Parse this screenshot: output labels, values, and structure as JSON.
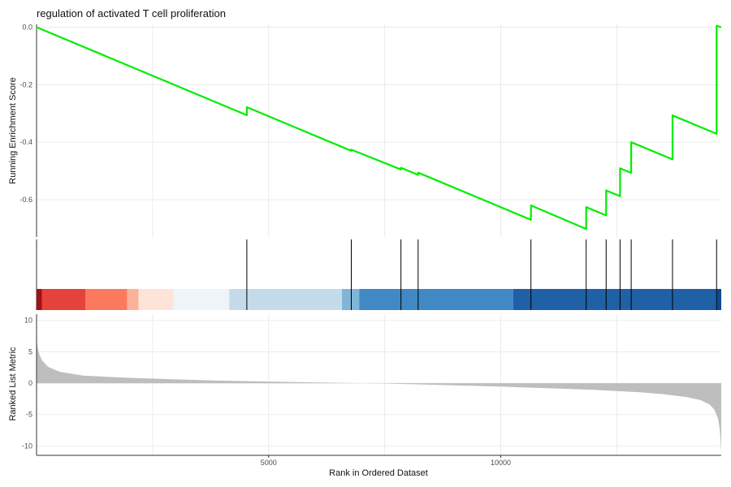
{
  "chart_data": {
    "type": "line",
    "title": "regulation of activated T cell proliferation",
    "xlabel": "Rank in Ordered Dataset",
    "x_ticks": [
      5000,
      10000
    ],
    "x_range": [
      0,
      14750
    ],
    "grid": true,
    "colors": {
      "running_score": "#00ee00",
      "ranked_metric_fill": "#bebebe",
      "gridline": "#ebebeb",
      "hit_line": "#000000"
    },
    "panels": [
      {
        "name": "running-enrichment-score",
        "ylabel": "Running Enrichment Score",
        "ylim": [
          -0.73,
          0.01
        ],
        "y_ticks": [
          0.0,
          -0.2,
          -0.4,
          -0.6
        ],
        "y_tick_labels": [
          "0.0",
          "-0.2",
          "-0.4",
          "-0.6"
        ],
        "series": [
          {
            "x": [
              0,
              4530,
              4530,
              6780,
              6780,
              7850,
              7850,
              8220,
              8220,
              10650,
              10650,
              11840,
              11840,
              12270,
              12270,
              12570,
              12570,
              12810,
              12810,
              13700,
              13700,
              14650,
              14650,
              14750
            ],
            "y": [
              0.0,
              -0.306,
              -0.278,
              -0.43,
              -0.426,
              -0.495,
              -0.489,
              -0.514,
              -0.506,
              -0.67,
              -0.62,
              -0.702,
              -0.626,
              -0.655,
              -0.568,
              -0.588,
              -0.491,
              -0.507,
              -0.4,
              -0.46,
              -0.307,
              -0.371,
              0.005,
              0.0
            ]
          }
        ]
      },
      {
        "name": "gene-hits",
        "hits": [
          4530,
          6780,
          7850,
          8220,
          10650,
          11840,
          12270,
          12570,
          12810,
          13700,
          14650
        ],
        "color_bar": [
          {
            "from": 0,
            "to": 120,
            "color": "#a50f15"
          },
          {
            "from": 120,
            "to": 1050,
            "color": "#e5423c"
          },
          {
            "from": 1050,
            "to": 1950,
            "color": "#fb7a5e"
          },
          {
            "from": 1950,
            "to": 2200,
            "color": "#fcb29a"
          },
          {
            "from": 2200,
            "to": 2950,
            "color": "#fee4d8"
          },
          {
            "from": 2950,
            "to": 4150,
            "color": "#eff3fa"
          },
          {
            "from": 4150,
            "to": 6580,
            "color": "#c4dbe9"
          },
          {
            "from": 6580,
            "to": 6950,
            "color": "#80b4d8"
          },
          {
            "from": 6950,
            "to": 10270,
            "color": "#4189c4"
          },
          {
            "from": 10270,
            "to": 14660,
            "color": "#2060a6"
          },
          {
            "from": 14660,
            "to": 14750,
            "color": "#0d4a90"
          }
        ]
      },
      {
        "name": "ranked-list-metric",
        "ylabel": "Ranked List Metric",
        "ylim": [
          -11.5,
          11
        ],
        "y_ticks": [
          10,
          5,
          0,
          -5,
          -10
        ],
        "y_tick_labels": [
          "10",
          "5",
          "0",
          "-5",
          "-10"
        ],
        "metric_curve": {
          "x": [
            0,
            20,
            60,
            120,
            250,
            500,
            1000,
            2000,
            3000,
            4000,
            5000,
            6000,
            7000,
            7500,
            8000,
            9000,
            10000,
            11000,
            12000,
            13000,
            13500,
            14000,
            14300,
            14500,
            14600,
            14680,
            14720,
            14750
          ],
          "y": [
            7.5,
            5.8,
            4.6,
            3.6,
            2.6,
            1.8,
            1.2,
            0.85,
            0.6,
            0.4,
            0.25,
            0.12,
            0.0,
            -0.06,
            -0.15,
            -0.35,
            -0.55,
            -0.8,
            -1.05,
            -1.45,
            -1.75,
            -2.2,
            -2.7,
            -3.4,
            -4.2,
            -5.6,
            -7.5,
            -11.0
          ]
        }
      }
    ]
  }
}
